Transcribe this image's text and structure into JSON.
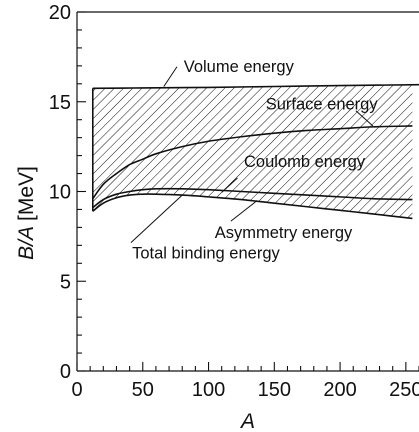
{
  "chart_data": {
    "type": "line",
    "xlabel": "A",
    "ylabel_main": "B/A",
    "ylabel_unit": "[MeV]",
    "xlim": [
      0,
      260
    ],
    "ylim": [
      0,
      20
    ],
    "x_ticks": [
      0,
      50,
      100,
      150,
      200,
      250
    ],
    "x_tick_labels": [
      "0",
      "50",
      "100",
      "150",
      "200",
      "250"
    ],
    "y_ticks": [
      0,
      5,
      10,
      15,
      20
    ],
    "y_tick_labels": [
      "0",
      "5",
      "10",
      "15",
      "20"
    ],
    "grid": false,
    "series": [
      {
        "name": "Volume energy",
        "x": [
          12,
          50,
          100,
          150,
          200,
          260
        ],
        "y": [
          15.75,
          15.77,
          15.8,
          15.85,
          15.9,
          15.95
        ]
      },
      {
        "name": "Surface energy",
        "x": [
          12,
          20,
          30,
          40,
          50,
          60,
          80,
          100,
          125,
          150,
          175,
          200,
          225,
          255
        ],
        "y": [
          9.6,
          10.4,
          11.0,
          11.5,
          11.8,
          12.1,
          12.5,
          12.8,
          13.05,
          13.25,
          13.4,
          13.5,
          13.6,
          13.65
        ]
      },
      {
        "name": "Coulomb energy",
        "x": [
          12,
          20,
          30,
          40,
          50,
          60,
          80,
          100,
          125,
          150,
          175,
          200,
          225,
          255
        ],
        "y": [
          9.1,
          9.55,
          9.85,
          10.0,
          10.1,
          10.15,
          10.15,
          10.1,
          10.0,
          9.9,
          9.8,
          9.7,
          9.6,
          9.55
        ]
      },
      {
        "name": "Total binding energy",
        "x": [
          12,
          20,
          30,
          40,
          50,
          60,
          80,
          100,
          125,
          150,
          175,
          200,
          225,
          255
        ],
        "y": [
          8.9,
          9.35,
          9.65,
          9.8,
          9.85,
          9.85,
          9.8,
          9.7,
          9.55,
          9.35,
          9.15,
          8.95,
          8.75,
          8.5
        ]
      }
    ],
    "annotations": [
      {
        "label": "Volume energy",
        "x": 123,
        "y": 17.0
      },
      {
        "label": "Surface energy",
        "x": 186,
        "y": 14.9
      },
      {
        "label": "Coulomb energy",
        "x": 173,
        "y": 11.7
      },
      {
        "label": "Asymmetry energy",
        "x": 157,
        "y": 7.75
      },
      {
        "label": "Total binding energy",
        "x": 98,
        "y": 6.6
      }
    ]
  }
}
